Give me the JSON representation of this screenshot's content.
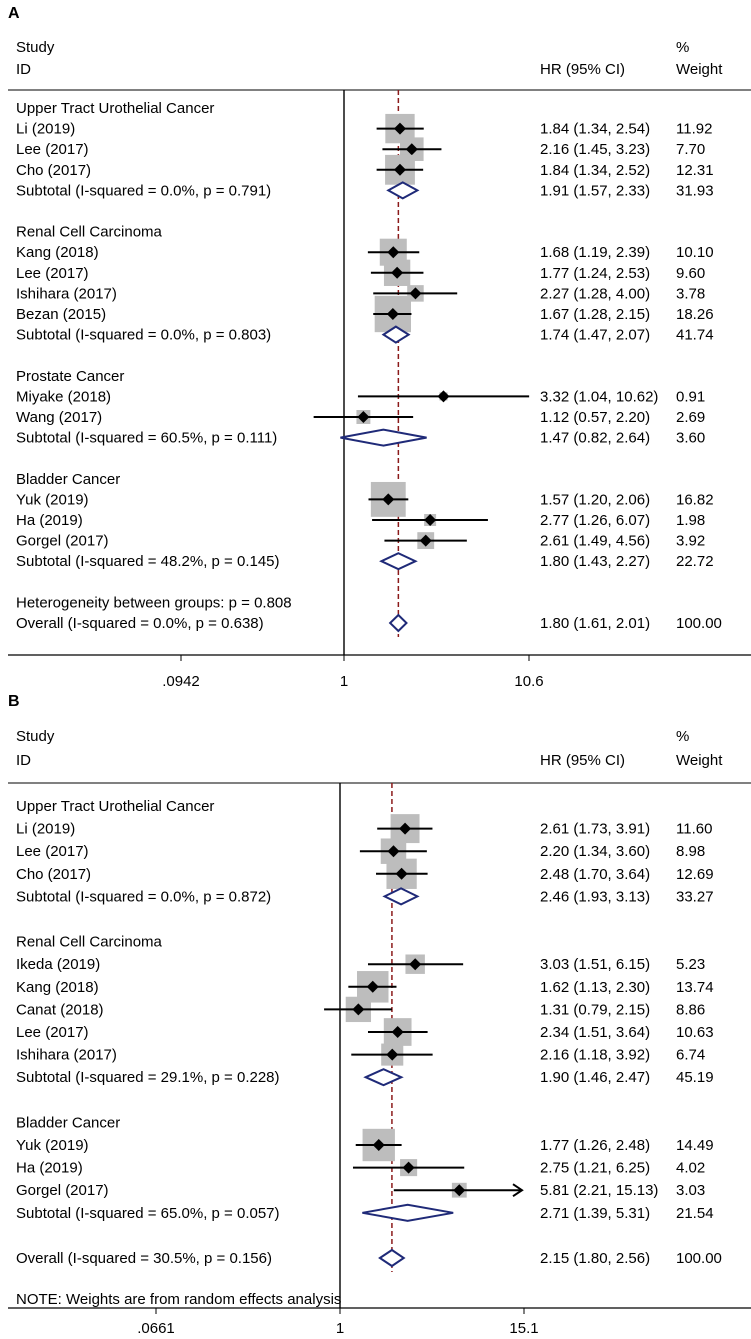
{
  "chart_data": [
    {
      "type": "forest",
      "panel_label": "A",
      "header": {
        "study": "Study",
        "id": "ID",
        "estimate": "HR (95% CI)",
        "weight_top": "%",
        "weight": "Weight"
      },
      "axis": {
        "scale": "log",
        "ticks": [
          {
            "value": 0.0942,
            "label": ".0942"
          },
          {
            "value": 1,
            "label": "1"
          },
          {
            "value": 10.6,
            "label": "10.6"
          }
        ]
      },
      "overall_hr": 1.8,
      "rows": [
        {
          "kind": "group",
          "label": "Upper Tract Urothelial Cancer"
        },
        {
          "kind": "study",
          "label": "Li (2019)",
          "hr": 1.84,
          "lo": 1.34,
          "hi": 2.54,
          "ci_text": "1.84 (1.34, 2.54)",
          "weight": "11.92",
          "w": 11.92
        },
        {
          "kind": "study",
          "label": "Lee (2017)",
          "hr": 2.16,
          "lo": 1.45,
          "hi": 3.23,
          "ci_text": "2.16 (1.45, 3.23)",
          "weight": "7.70",
          "w": 7.7
        },
        {
          "kind": "study",
          "label": "Cho (2017)",
          "hr": 1.84,
          "lo": 1.34,
          "hi": 2.52,
          "ci_text": "1.84 (1.34, 2.52)",
          "weight": "12.31",
          "w": 12.31
        },
        {
          "kind": "subtotal",
          "label": "Subtotal  (I-squared = 0.0%, p = 0.791)",
          "hr": 1.91,
          "lo": 1.57,
          "hi": 2.33,
          "ci_text": "1.91 (1.57, 2.33)",
          "weight": "31.93"
        },
        {
          "kind": "blank"
        },
        {
          "kind": "group",
          "label": "Renal Cell Carcinoma"
        },
        {
          "kind": "study",
          "label": "Kang (2018)",
          "hr": 1.68,
          "lo": 1.19,
          "hi": 2.39,
          "ci_text": "1.68 (1.19, 2.39)",
          "weight": "10.10",
          "w": 10.1
        },
        {
          "kind": "study",
          "label": "Lee (2017)",
          "hr": 1.77,
          "lo": 1.24,
          "hi": 2.53,
          "ci_text": "1.77 (1.24, 2.53)",
          "weight": "9.60",
          "w": 9.6
        },
        {
          "kind": "study",
          "label": "Ishihara (2017)",
          "hr": 2.27,
          "lo": 1.28,
          "hi": 4.0,
          "ci_text": "2.27 (1.28, 4.00)",
          "weight": "3.78",
          "w": 3.78
        },
        {
          "kind": "study",
          "label": "Bezan (2015)",
          "hr": 1.67,
          "lo": 1.28,
          "hi": 2.15,
          "ci_text": "1.67 (1.28, 2.15)",
          "weight": "18.26",
          "w": 18.26
        },
        {
          "kind": "subtotal",
          "label": "Subtotal  (I-squared = 0.0%, p = 0.803)",
          "hr": 1.74,
          "lo": 1.47,
          "hi": 2.07,
          "ci_text": "1.74 (1.47, 2.07)",
          "weight": "41.74"
        },
        {
          "kind": "blank"
        },
        {
          "kind": "group",
          "label": "Prostate Cancer"
        },
        {
          "kind": "study",
          "label": "Miyake (2018)",
          "hr": 3.32,
          "lo": 1.04,
          "hi": 10.62,
          "ci_text": "3.32 (1.04, 10.62)",
          "weight": "0.91",
          "w": 0.91
        },
        {
          "kind": "study",
          "label": "Wang (2017)",
          "hr": 1.12,
          "lo": 0.57,
          "hi": 2.2,
          "ci_text": "1.12 (0.57, 2.20)",
          "weight": "2.69",
          "w": 2.69
        },
        {
          "kind": "subtotal",
          "label": "Subtotal  (I-squared = 60.5%, p = 0.111)",
          "hr": 1.47,
          "lo": 0.82,
          "hi": 2.64,
          "ci_text": "1.47 (0.82, 2.64)",
          "weight": "3.60"
        },
        {
          "kind": "blank"
        },
        {
          "kind": "group",
          "label": "Bladder Cancer"
        },
        {
          "kind": "study",
          "label": "Yuk (2019)",
          "hr": 1.57,
          "lo": 1.2,
          "hi": 2.06,
          "ci_text": "1.57 (1.20, 2.06)",
          "weight": "16.82",
          "w": 16.82
        },
        {
          "kind": "study",
          "label": "Ha (2019)",
          "hr": 2.77,
          "lo": 1.26,
          "hi": 6.07,
          "ci_text": "2.77 (1.26, 6.07)",
          "weight": "1.98",
          "w": 1.98
        },
        {
          "kind": "study",
          "label": "Gorgel (2017)",
          "hr": 2.61,
          "lo": 1.49,
          "hi": 4.56,
          "ci_text": "2.61 (1.49, 4.56)",
          "weight": "3.92",
          "w": 3.92
        },
        {
          "kind": "subtotal",
          "label": "Subtotal  (I-squared = 48.2%, p = 0.145)",
          "hr": 1.8,
          "lo": 1.43,
          "hi": 2.27,
          "ci_text": "1.80 (1.43, 2.27)",
          "weight": "22.72"
        },
        {
          "kind": "blank"
        },
        {
          "kind": "text",
          "label": "Heterogeneity between groups: p = 0.808"
        },
        {
          "kind": "overall",
          "label": "Overall  (I-squared = 0.0%, p = 0.638)",
          "hr": 1.8,
          "lo": 1.61,
          "hi": 2.01,
          "ci_text": "1.80 (1.61, 2.01)",
          "weight": "100.00"
        }
      ]
    },
    {
      "type": "forest",
      "panel_label": "B",
      "header": {
        "study": "Study",
        "id": "ID",
        "estimate": "HR (95% CI)",
        "weight_top": "%",
        "weight": "Weight"
      },
      "axis": {
        "scale": "log",
        "ticks": [
          {
            "value": 0.0661,
            "label": ".0661"
          },
          {
            "value": 1,
            "label": "1"
          },
          {
            "value": 15.1,
            "label": "15.1"
          }
        ]
      },
      "overall_hr": 2.15,
      "note": "NOTE: Weights are from random effects analysis",
      "rows": [
        {
          "kind": "group",
          "label": "Upper Tract Urothelial Cancer"
        },
        {
          "kind": "study",
          "label": "Li (2019)",
          "hr": 2.61,
          "lo": 1.73,
          "hi": 3.91,
          "ci_text": "2.61 (1.73, 3.91)",
          "weight": "11.60",
          "w": 11.6
        },
        {
          "kind": "study",
          "label": "Lee (2017)",
          "hr": 2.2,
          "lo": 1.34,
          "hi": 3.6,
          "ci_text": "2.20 (1.34, 3.60)",
          "weight": "8.98",
          "w": 8.98
        },
        {
          "kind": "study",
          "label": "Cho (2017)",
          "hr": 2.48,
          "lo": 1.7,
          "hi": 3.64,
          "ci_text": "2.48 (1.70, 3.64)",
          "weight": "12.69",
          "w": 12.69
        },
        {
          "kind": "subtotal",
          "label": "Subtotal  (I-squared = 0.0%, p = 0.872)",
          "hr": 2.46,
          "lo": 1.93,
          "hi": 3.13,
          "ci_text": "2.46 (1.93, 3.13)",
          "weight": "33.27"
        },
        {
          "kind": "blank"
        },
        {
          "kind": "group",
          "label": "Renal Cell Carcinoma"
        },
        {
          "kind": "study",
          "label": "Ikeda (2019)",
          "hr": 3.03,
          "lo": 1.51,
          "hi": 6.15,
          "ci_text": "3.03 (1.51, 6.15)",
          "weight": "5.23",
          "w": 5.23
        },
        {
          "kind": "study",
          "label": "Kang (2018)",
          "hr": 1.62,
          "lo": 1.13,
          "hi": 2.3,
          "ci_text": "1.62 (1.13, 2.30)",
          "weight": "13.74",
          "w": 13.74
        },
        {
          "kind": "study",
          "label": "Canat (2018)",
          "hr": 1.31,
          "lo": 0.79,
          "hi": 2.15,
          "ci_text": "1.31 (0.79, 2.15)",
          "weight": "8.86",
          "w": 8.86
        },
        {
          "kind": "study",
          "label": "Lee (2017)",
          "hr": 2.34,
          "lo": 1.51,
          "hi": 3.64,
          "ci_text": "2.34 (1.51, 3.64)",
          "weight": "10.63",
          "w": 10.63
        },
        {
          "kind": "study",
          "label": "Ishihara (2017)",
          "hr": 2.16,
          "lo": 1.18,
          "hi": 3.92,
          "ci_text": "2.16 (1.18, 3.92)",
          "weight": "6.74",
          "w": 6.74
        },
        {
          "kind": "subtotal",
          "label": "Subtotal  (I-squared = 29.1%, p = 0.228)",
          "hr": 1.9,
          "lo": 1.46,
          "hi": 2.47,
          "ci_text": "1.90 (1.46, 2.47)",
          "weight": "45.19"
        },
        {
          "kind": "blank"
        },
        {
          "kind": "group",
          "label": "Bladder Cancer"
        },
        {
          "kind": "study",
          "label": "Yuk (2019)",
          "hr": 1.77,
          "lo": 1.26,
          "hi": 2.48,
          "ci_text": "1.77 (1.26, 2.48)",
          "weight": "14.49",
          "w": 14.49
        },
        {
          "kind": "study",
          "label": "Ha (2019)",
          "hr": 2.75,
          "lo": 1.21,
          "hi": 6.25,
          "ci_text": "2.75 (1.21, 6.25)",
          "weight": "4.02",
          "w": 4.02
        },
        {
          "kind": "study",
          "label": "Gorgel (2017)",
          "hr": 5.81,
          "lo": 2.21,
          "hi": 15.13,
          "ci_text": "5.81 (2.21, 15.13)",
          "weight": "3.03",
          "w": 3.03,
          "arrow": true
        },
        {
          "kind": "subtotal",
          "label": "Subtotal  (I-squared = 65.0%, p = 0.057)",
          "hr": 2.71,
          "lo": 1.39,
          "hi": 5.31,
          "ci_text": "2.71 (1.39, 5.31)",
          "weight": "21.54"
        },
        {
          "kind": "blank"
        },
        {
          "kind": "overall",
          "label": "Overall  (I-squared = 30.5%, p = 0.156)",
          "hr": 2.15,
          "lo": 1.8,
          "hi": 2.56,
          "ci_text": "2.15 (1.80, 2.56)",
          "weight": "100.00"
        }
      ]
    }
  ]
}
